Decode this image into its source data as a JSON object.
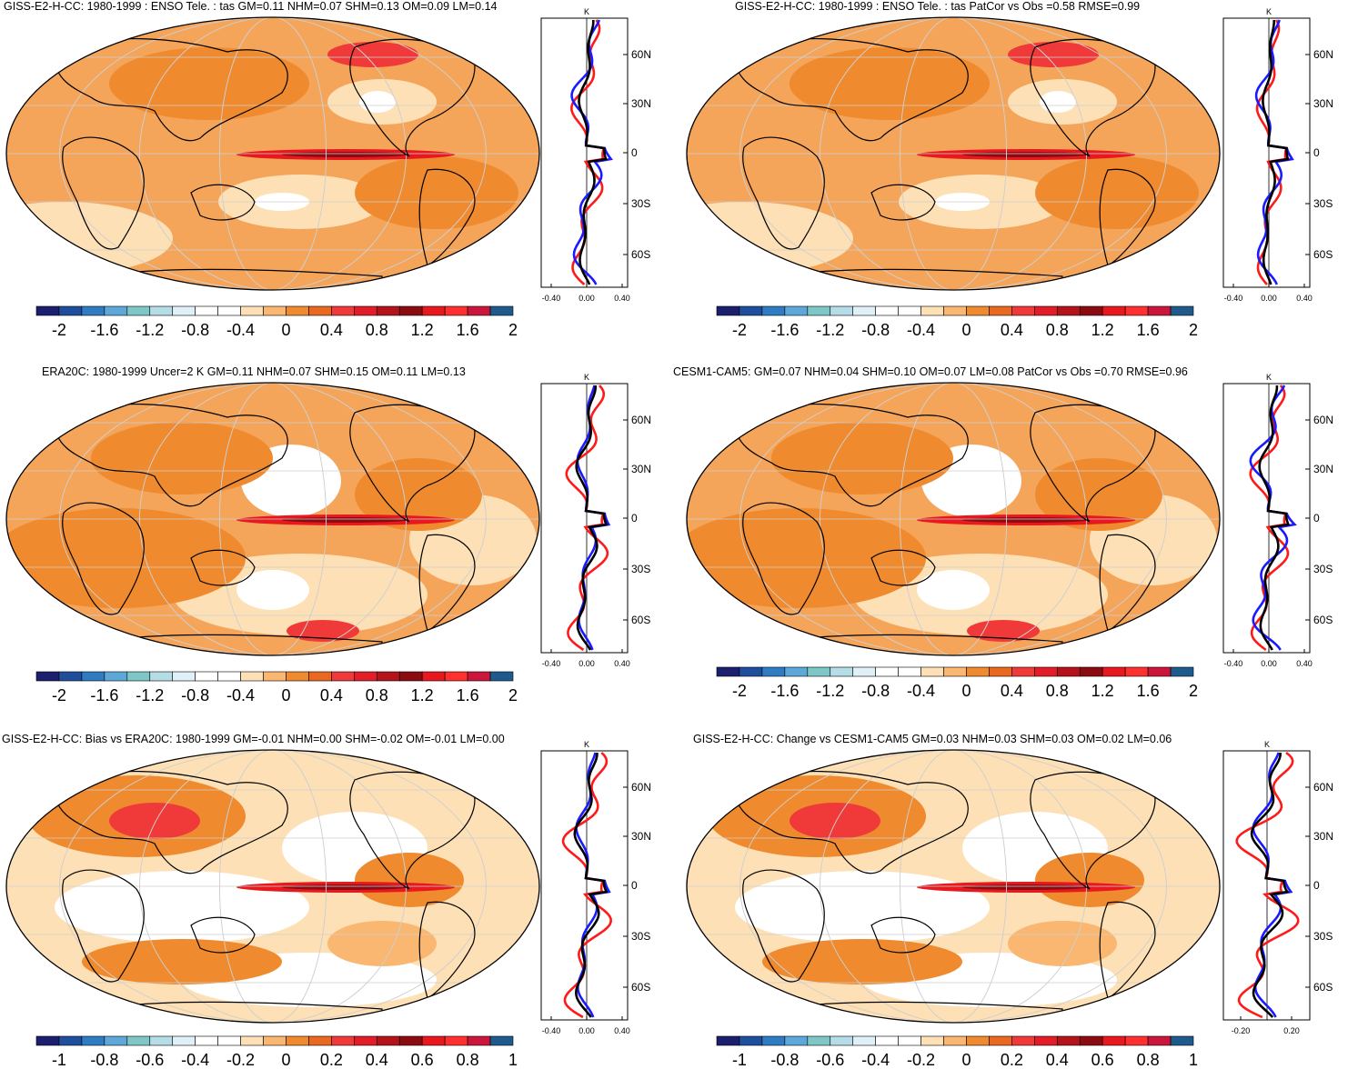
{
  "panels": [
    {
      "id": "p1",
      "title": "GISS-E2-H-CC: 1980-1999 : ENSO Tele. : tas GM=0.11 NHM=0.07 SHM=0.13 OM=0.09 LM=0.14",
      "colorbar": {
        "labels": [
          "-2",
          "-1.6",
          "-1.2",
          "-0.8",
          "-0.4",
          "0",
          "0.4",
          "0.8",
          "1.2",
          "1.6",
          "2"
        ]
      },
      "profile": {
        "unit": "K",
        "x_ticks": [
          "-0.40",
          "0.00",
          "0.40"
        ],
        "lat_ticks": [
          "60N",
          "30N",
          "0",
          "30S",
          "60S"
        ]
      }
    },
    {
      "id": "p2",
      "title": "GISS-E2-H-CC: 1980-1999 : ENSO Tele. : tas PatCor vs Obs =0.58 RMSE=0.99",
      "colorbar": {
        "labels": [
          "-2",
          "-1.6",
          "-1.2",
          "-0.8",
          "-0.4",
          "0",
          "0.4",
          "0.8",
          "1.2",
          "1.6",
          "2"
        ]
      },
      "profile": {
        "unit": "K",
        "x_ticks": [
          "-0.40",
          "0.00",
          "0.40"
        ],
        "lat_ticks": [
          "60N",
          "30N",
          "0",
          "30S",
          "60S"
        ]
      }
    },
    {
      "id": "p3",
      "title": "ERA20C: 1980-1999 Uncer=2 K GM=0.11 NHM=0.07 SHM=0.15 OM=0.11 LM=0.13",
      "colorbar": {
        "labels": [
          "-2",
          "-1.6",
          "-1.2",
          "-0.8",
          "-0.4",
          "0",
          "0.4",
          "0.8",
          "1.2",
          "1.6",
          "2"
        ]
      },
      "profile": {
        "unit": "K",
        "x_ticks": [
          "-0.40",
          "0.00",
          "0.40"
        ],
        "lat_ticks": [
          "60N",
          "30N",
          "0",
          "30S",
          "60S"
        ]
      }
    },
    {
      "id": "p4",
      "title": "CESM1-CAM5: GM=0.07 NHM=0.04 SHM=0.10 OM=0.07 LM=0.08 PatCor vs Obs =0.70 RMSE=0.96",
      "colorbar": {
        "labels": [
          "-2",
          "-1.6",
          "-1.2",
          "-0.8",
          "-0.4",
          "0",
          "0.4",
          "0.8",
          "1.2",
          "1.6",
          "2"
        ]
      },
      "profile": {
        "unit": "K",
        "x_ticks": [
          "-0.40",
          "0.00",
          "0.40"
        ],
        "lat_ticks": [
          "60N",
          "30N",
          "0",
          "30S",
          "60S"
        ]
      }
    },
    {
      "id": "p5",
      "title": "GISS-E2-H-CC: Bias vs ERA20C: 1980-1999 GM=-0.01 NHM=0.00 SHM=-0.02 OM=-0.01 LM=0.00",
      "colorbar": {
        "labels": [
          "-1",
          "-0.8",
          "-0.6",
          "-0.4",
          "-0.2",
          "0",
          "0.2",
          "0.4",
          "0.6",
          "0.8",
          "1"
        ]
      },
      "profile": {
        "unit": "K",
        "x_ticks": [
          "-0.40",
          "0.00",
          "0.40"
        ],
        "lat_ticks": [
          "60N",
          "30N",
          "0",
          "30S",
          "60S"
        ]
      }
    },
    {
      "id": "p6",
      "title": "GISS-E2-H-CC: Change vs CESM1-CAM5 GM=0.03 NHM=0.03 SHM=0.03 OM=0.02 LM=0.06",
      "colorbar": {
        "labels": [
          "-1",
          "-0.8",
          "-0.6",
          "-0.4",
          "-0.2",
          "0",
          "0.2",
          "0.4",
          "0.6",
          "0.8",
          "1"
        ]
      },
      "profile": {
        "unit": "K",
        "x_ticks": [
          "-0.20",
          "0.20"
        ],
        "lat_ticks": [
          "60N",
          "30N",
          "0",
          "30S",
          "60S"
        ]
      }
    }
  ],
  "colors": {
    "colorbar": [
      "#1b1f6e",
      "#1f4f9c",
      "#2f7cc3",
      "#5ea8d9",
      "#7fc7c6",
      "#b5dde8",
      "#dff1f7",
      "#ffffff",
      "#ffffff",
      "#fde0b5",
      "#f9b772",
      "#ef8a2f",
      "#e8691f",
      "#f03a3a",
      "#e11d2a",
      "#b5131b",
      "#8a0b10",
      "#e8191e",
      "#ff3030",
      "#c9163a",
      "#1f5a8c"
    ],
    "land_outline": "#000000",
    "grid": "#bfbfbf",
    "series_red": "#ff1a1a",
    "series_blue": "#1a1aff",
    "series_black": "#000000"
  }
}
